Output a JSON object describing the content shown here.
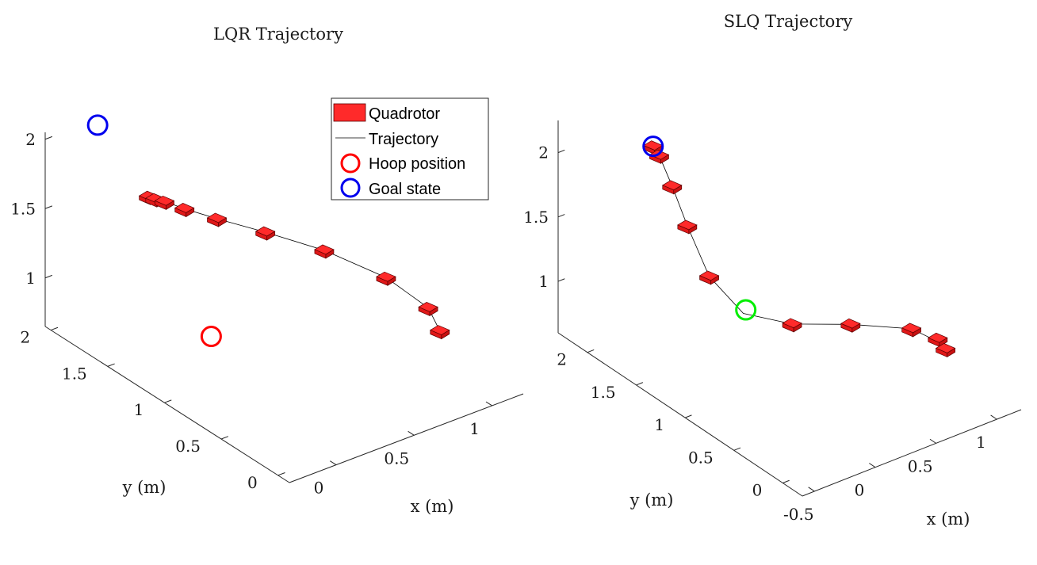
{
  "colors": {
    "quadrotor": "#ff2a2a",
    "quadrotor_edge": "#5a0000",
    "hoop": "#ff0000",
    "goal": "#0000ee",
    "slq_hoop": "#00ee00",
    "trajectory": "#000000"
  },
  "legend": {
    "placement": "top-right of left panel",
    "items": [
      {
        "label": "Quadrotor",
        "kind": "quadrotor"
      },
      {
        "label": "Trajectory",
        "kind": "line"
      },
      {
        "label": "Hoop position",
        "kind": "circle-red"
      },
      {
        "label": "Goal state",
        "kind": "circle-blue"
      }
    ]
  },
  "chart_data": [
    {
      "type": "scatter",
      "title": "LQR Trajectory",
      "xlabel": "x (m)",
      "ylabel": "y (m)",
      "zlabel": "",
      "xlim": [
        -0.3,
        1.2
      ],
      "ylim": [
        -0.1,
        2.05
      ],
      "zlim": [
        0.65,
        2.05
      ],
      "x_ticks": [
        0,
        0.5,
        1
      ],
      "x_tick_labels": [
        "0",
        "0.5",
        "1"
      ],
      "y_ticks": [
        0,
        0.5,
        1,
        1.5,
        2
      ],
      "y_tick_labels": [
        "0",
        "0.5",
        "1",
        "1.5",
        "2"
      ],
      "z_ticks": [
        1,
        1.5,
        2
      ],
      "z_tick_labels": [
        "1",
        "1.5",
        "2"
      ],
      "grid": false,
      "trajectory": [
        {
          "x": 0.0,
          "y": 1.55,
          "z": 1.72
        },
        {
          "x": 0.02,
          "y": 1.52,
          "z": 1.71
        },
        {
          "x": 0.05,
          "y": 1.48,
          "z": 1.7
        },
        {
          "x": 0.12,
          "y": 1.4,
          "z": 1.66
        },
        {
          "x": 0.24,
          "y": 1.28,
          "z": 1.6
        },
        {
          "x": 0.42,
          "y": 1.1,
          "z": 1.52
        },
        {
          "x": 0.63,
          "y": 0.87,
          "z": 1.42
        },
        {
          "x": 0.83,
          "y": 0.6,
          "z": 1.28
        },
        {
          "x": 0.94,
          "y": 0.38,
          "z": 1.13
        },
        {
          "x": 0.92,
          "y": 0.25,
          "z": 1.04
        }
      ],
      "quadrotors": [
        {
          "x": 0.0,
          "y": 1.55,
          "z": 1.72
        },
        {
          "x": 0.02,
          "y": 1.52,
          "z": 1.71
        },
        {
          "x": 0.05,
          "y": 1.48,
          "z": 1.7
        },
        {
          "x": 0.12,
          "y": 1.4,
          "z": 1.66
        },
        {
          "x": 0.24,
          "y": 1.28,
          "z": 1.6
        },
        {
          "x": 0.42,
          "y": 1.1,
          "z": 1.52
        },
        {
          "x": 0.63,
          "y": 0.87,
          "z": 1.42
        },
        {
          "x": 0.83,
          "y": 0.6,
          "z": 1.28
        },
        {
          "x": 0.94,
          "y": 0.38,
          "z": 1.13
        },
        {
          "x": 0.92,
          "y": 0.25,
          "z": 1.04
        }
      ],
      "hoop": {
        "x": 0.0,
        "y": 1.0,
        "z": 1.0
      },
      "goal": {
        "x": 0.0,
        "y": 2.0,
        "z": 2.0
      }
    },
    {
      "type": "scatter",
      "title": "SLQ Trajectory",
      "xlabel": "x (m)",
      "ylabel": "y (m)",
      "zlabel": "",
      "xlim": [
        -0.6,
        1.2
      ],
      "ylim": [
        -0.2,
        2.3
      ],
      "zlim": [
        0.6,
        2.25
      ],
      "x_ticks": [
        -0.5,
        0,
        0.5,
        1
      ],
      "x_tick_labels": [
        "-0.5",
        "0",
        "0.5",
        "1"
      ],
      "y_ticks": [
        0,
        0.5,
        1,
        1.5,
        2
      ],
      "y_tick_labels": [
        "0",
        "0.5",
        "1",
        "1.5",
        "2"
      ],
      "z_ticks": [
        1,
        1.5,
        2
      ],
      "z_tick_labels": [
        "1",
        "1.5",
        "2"
      ],
      "grid": false,
      "trajectory": [
        {
          "x": -0.06,
          "y": 2.0,
          "z": 2.0
        },
        {
          "x": -0.05,
          "y": 1.95,
          "z": 1.95
        },
        {
          "x": -0.04,
          "y": 1.83,
          "z": 1.77
        },
        {
          "x": -0.02,
          "y": 1.7,
          "z": 1.52
        },
        {
          "x": 0.0,
          "y": 1.5,
          "z": 1.22
        },
        {
          "x": 0.08,
          "y": 1.25,
          "z": 1.03
        },
        {
          "x": 0.28,
          "y": 1.0,
          "z": 1.0
        },
        {
          "x": 0.56,
          "y": 0.75,
          "z": 1.02
        },
        {
          "x": 0.86,
          "y": 0.5,
          "z": 1.0
        },
        {
          "x": 0.98,
          "y": 0.36,
          "z": 0.92
        }
      ],
      "quadrotors": [
        {
          "x": -0.06,
          "y": 2.0,
          "z": 2.0
        },
        {
          "x": -0.05,
          "y": 1.95,
          "z": 1.95
        },
        {
          "x": -0.04,
          "y": 1.83,
          "z": 1.77
        },
        {
          "x": -0.02,
          "y": 1.7,
          "z": 1.52
        },
        {
          "x": 0.0,
          "y": 1.5,
          "z": 1.22
        },
        {
          "x": 0.28,
          "y": 1.0,
          "z": 1.0
        },
        {
          "x": 0.56,
          "y": 0.75,
          "z": 1.02
        },
        {
          "x": 0.86,
          "y": 0.5,
          "z": 1.0
        },
        {
          "x": 0.98,
          "y": 0.38,
          "z": 0.94
        },
        {
          "x": 0.98,
          "y": 0.3,
          "z": 0.9
        }
      ],
      "hoop": {
        "x": 0.1,
        "y": 1.25,
        "z": 1.05
      },
      "goal": {
        "x": -0.06,
        "y": 2.0,
        "z": 2.0
      }
    }
  ]
}
